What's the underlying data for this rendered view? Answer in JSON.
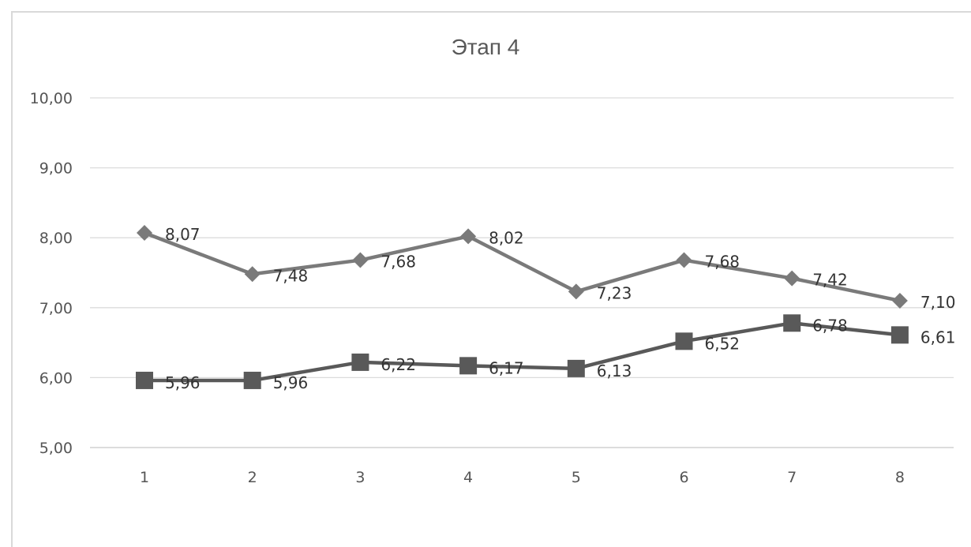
{
  "chart_data": {
    "type": "line",
    "title": "Этап 4",
    "xlabel": "",
    "ylabel": "",
    "categories": [
      "1",
      "2",
      "3",
      "4",
      "5",
      "6",
      "7",
      "8"
    ],
    "ylim": [
      5,
      10
    ],
    "yticks": [
      "5,00",
      "6,00",
      "7,00",
      "8,00",
      "9,00",
      "10,00"
    ],
    "grid": true,
    "legend": false,
    "series": [
      {
        "marker": "diamond",
        "color": "#7a7a7a",
        "values": [
          8.07,
          7.48,
          7.68,
          8.02,
          7.23,
          7.68,
          7.42,
          7.1
        ],
        "labels": [
          "8,07",
          "7,48",
          "7,68",
          "8,02",
          "7,23",
          "7,68",
          "7,42",
          "7,10"
        ]
      },
      {
        "marker": "square",
        "color": "#595959",
        "values": [
          5.96,
          5.96,
          6.22,
          6.17,
          6.13,
          6.52,
          6.78,
          6.61
        ],
        "labels": [
          "5,96",
          "5,96",
          "6,22",
          "6,17",
          "6,13",
          "6,52",
          "6,78",
          "6,61"
        ]
      }
    ]
  }
}
